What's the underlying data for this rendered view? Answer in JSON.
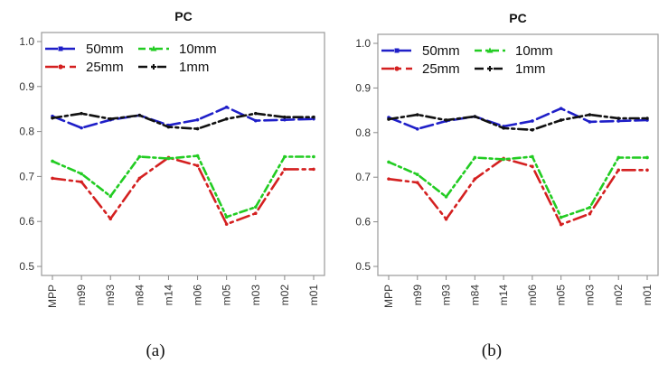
{
  "chart_data": [
    {
      "type": "line",
      "title": "PC",
      "caption": "(a)",
      "xlabel": "",
      "ylabel": "",
      "ylim": [
        0.5,
        1.0
      ],
      "yticks": [
        "0.5",
        "0.6",
        "0.7",
        "0.8",
        "0.9",
        "1.0"
      ],
      "categories": [
        "MPP",
        "m99",
        "m93",
        "m84",
        "m14",
        "m06",
        "m05",
        "m03",
        "m02",
        "m01"
      ],
      "legend_position": "top-left",
      "grid": false,
      "series": [
        {
          "name": "50mm",
          "color": "#1f1fc8",
          "marker": "square",
          "values": [
            0.834,
            0.808,
            0.826,
            0.836,
            0.814,
            0.826,
            0.854,
            0.824,
            0.826,
            0.828
          ]
        },
        {
          "name": "25mm",
          "color": "#d42020",
          "marker": "circle",
          "values": [
            0.696,
            0.688,
            0.606,
            0.696,
            0.742,
            0.724,
            0.594,
            0.618,
            0.716,
            0.716
          ]
        },
        {
          "name": "10mm",
          "color": "#22cc22",
          "marker": "triangle",
          "values": [
            0.734,
            0.706,
            0.656,
            0.744,
            0.74,
            0.746,
            0.61,
            0.632,
            0.744,
            0.744
          ]
        },
        {
          "name": "1mm",
          "color": "#111111",
          "marker": "plus",
          "values": [
            0.83,
            0.84,
            0.828,
            0.836,
            0.81,
            0.806,
            0.828,
            0.84,
            0.832,
            0.832
          ]
        }
      ]
    },
    {
      "type": "line",
      "title": "PC",
      "caption": "(b)",
      "xlabel": "",
      "ylabel": "",
      "ylim": [
        0.5,
        1.0
      ],
      "yticks": [
        "0.5",
        "0.6",
        "0.7",
        "0.8",
        "0.9",
        "1.0"
      ],
      "categories": [
        "MPP",
        "m99",
        "m93",
        "m84",
        "m14",
        "m06",
        "m05",
        "m03",
        "m02",
        "m01"
      ],
      "legend_position": "top-left",
      "grid": false,
      "series": [
        {
          "name": "50mm",
          "color": "#1f1fc8",
          "marker": "square",
          "values": [
            0.834,
            0.808,
            0.826,
            0.836,
            0.814,
            0.826,
            0.854,
            0.824,
            0.826,
            0.828
          ]
        },
        {
          "name": "25mm",
          "color": "#d42020",
          "marker": "circle",
          "values": [
            0.696,
            0.688,
            0.606,
            0.696,
            0.742,
            0.724,
            0.594,
            0.618,
            0.716,
            0.716
          ]
        },
        {
          "name": "10mm",
          "color": "#22cc22",
          "marker": "triangle",
          "values": [
            0.734,
            0.706,
            0.656,
            0.744,
            0.74,
            0.746,
            0.61,
            0.632,
            0.744,
            0.744
          ]
        },
        {
          "name": "1mm",
          "color": "#111111",
          "marker": "plus",
          "values": [
            0.83,
            0.84,
            0.828,
            0.836,
            0.81,
            0.806,
            0.828,
            0.84,
            0.832,
            0.832
          ]
        }
      ]
    }
  ]
}
